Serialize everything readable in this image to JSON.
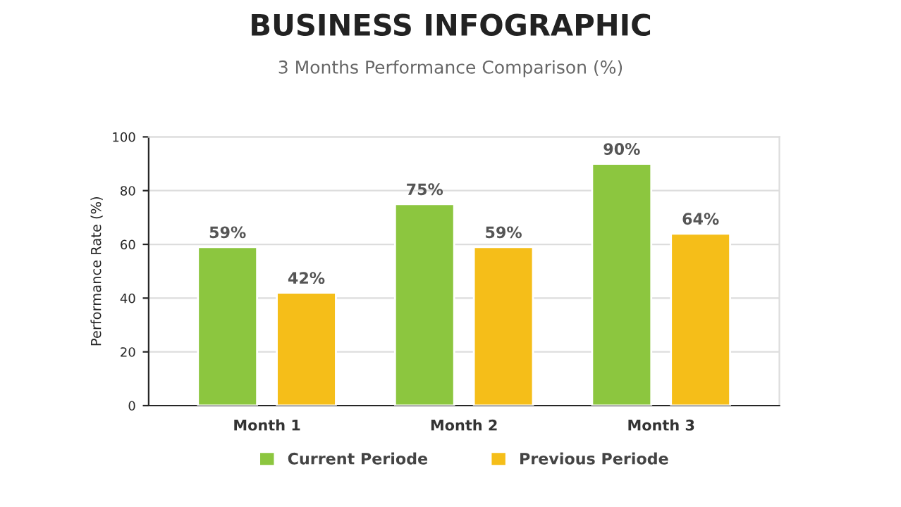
{
  "chart_data": {
    "type": "bar",
    "title": "BUSINESS INFOGRAPHIC",
    "subtitle": "3 Months Performance Comparison (%)",
    "ylabel": "Performance Rate (%)",
    "categories": [
      "Month 1",
      "Month 2",
      "Month 3"
    ],
    "series": [
      {
        "name": "Current Periode",
        "color": "#8cc63f",
        "values": [
          59,
          75,
          90
        ],
        "value_labels": [
          "59%",
          "75%",
          "90%"
        ]
      },
      {
        "name": "Previous Periode",
        "color": "#f5be19",
        "values": [
          42,
          59,
          64
        ],
        "value_labels": [
          "42%",
          "59%",
          "64%"
        ]
      }
    ],
    "ylim": [
      0,
      100
    ],
    "yticks": [
      0,
      20,
      40,
      60,
      80,
      100
    ],
    "grid": "y",
    "legend": "bottom"
  }
}
